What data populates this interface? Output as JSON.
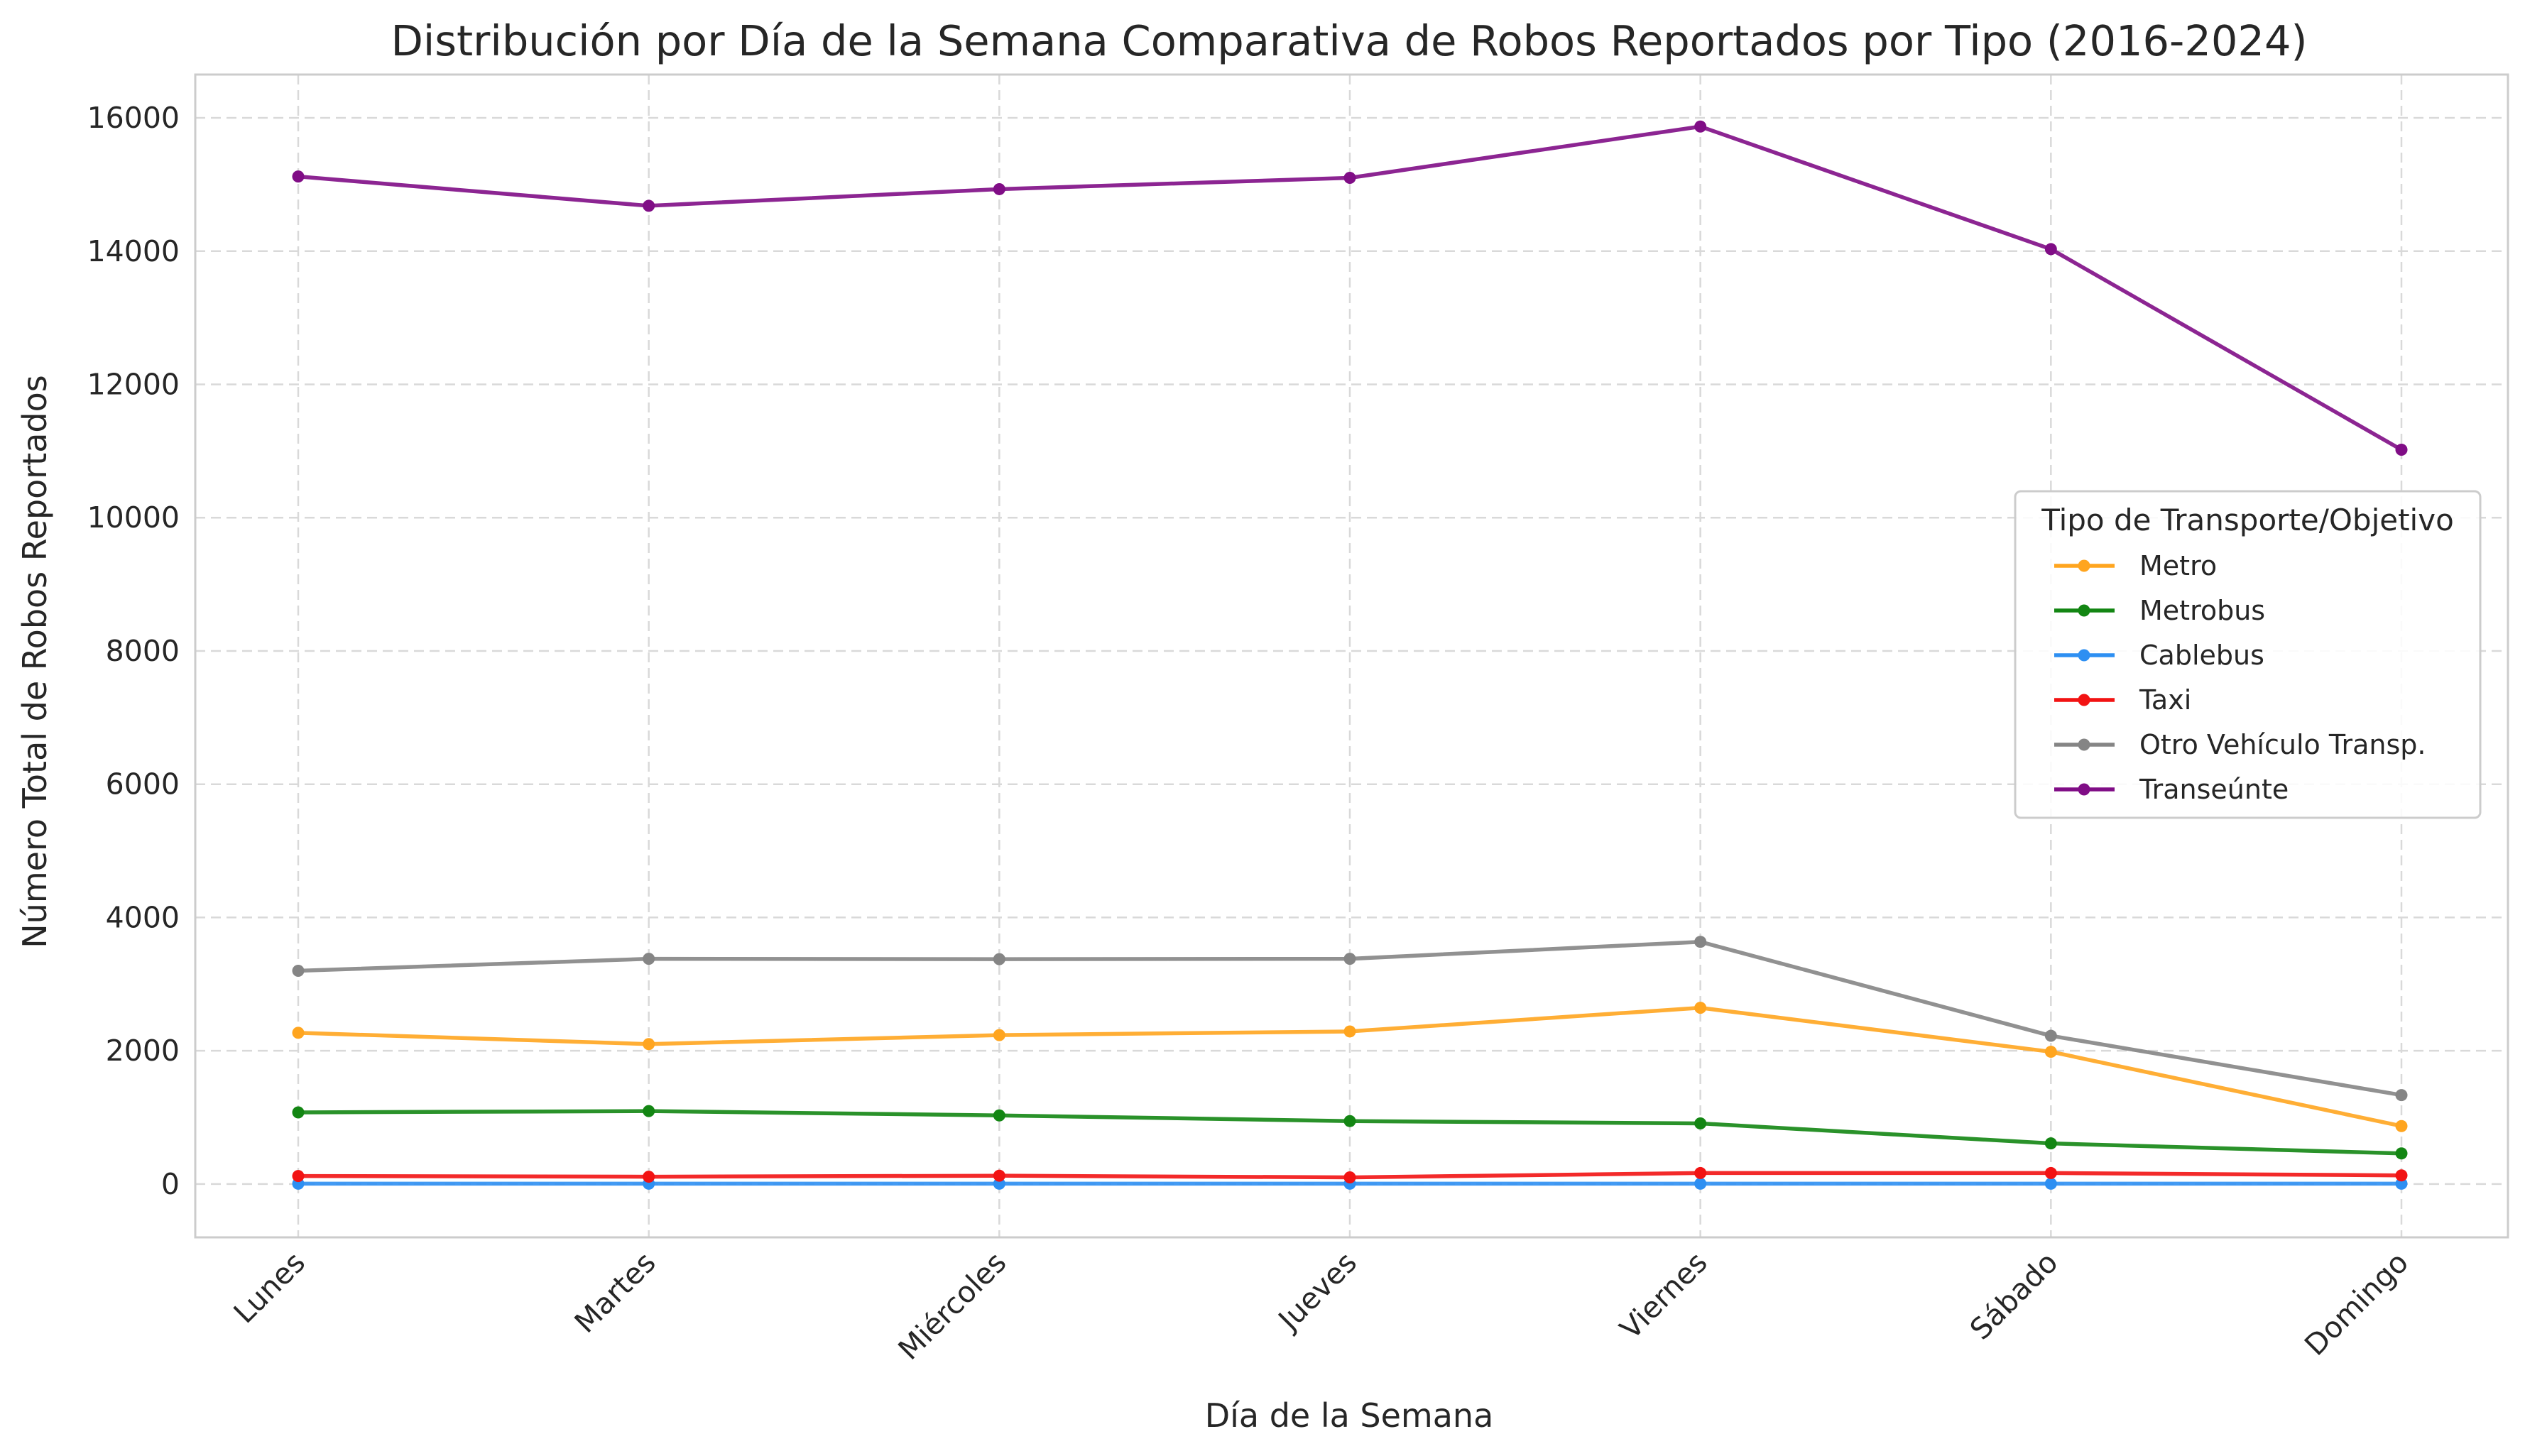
{
  "chart_data": {
    "type": "line",
    "title": "Distribución por Día de la Semana Comparativa de Robos Reportados por Tipo (2016-2024)",
    "xlabel": "Día de la Semana",
    "ylabel": "Número Total de Robos Reportados",
    "categories": [
      "Lunes",
      "Martes",
      "Miércoles",
      "Jueves",
      "Viernes",
      "Sábado",
      "Domingo"
    ],
    "ylim": [
      -800,
      16650
    ],
    "yticks": [
      0,
      2000,
      4000,
      6000,
      8000,
      10000,
      12000,
      14000,
      16000
    ],
    "ytick_labels": [
      "0",
      "2000",
      "4000",
      "6000",
      "8000",
      "10000",
      "12000",
      "14000",
      "16000"
    ],
    "grid": true,
    "legend": {
      "title": "Tipo de Transporte/Objetivo",
      "placement": "center-right"
    },
    "series": [
      {
        "name": "Metro",
        "color": "#ffa51f",
        "values": [
          2270,
          2100,
          2235,
          2290,
          2645,
          1985,
          870
        ]
      },
      {
        "name": "Metrobus",
        "color": "#138613",
        "values": [
          1075,
          1095,
          1030,
          945,
          910,
          610,
          460
        ]
      },
      {
        "name": "Cablebus",
        "color": "#2d8ff2",
        "values": [
          5,
          5,
          5,
          5,
          5,
          5,
          5
        ]
      },
      {
        "name": "Taxi",
        "color": "#f21313",
        "values": [
          120,
          110,
          125,
          100,
          165,
          165,
          130
        ]
      },
      {
        "name": "Otro Vehículo Transp.",
        "color": "#858585",
        "values": [
          3200,
          3380,
          3375,
          3380,
          3635,
          2225,
          1335
        ]
      },
      {
        "name": "Transeúnte",
        "color": "#800d86",
        "values": [
          15120,
          14680,
          14930,
          15100,
          15870,
          14030,
          11020
        ]
      }
    ]
  }
}
